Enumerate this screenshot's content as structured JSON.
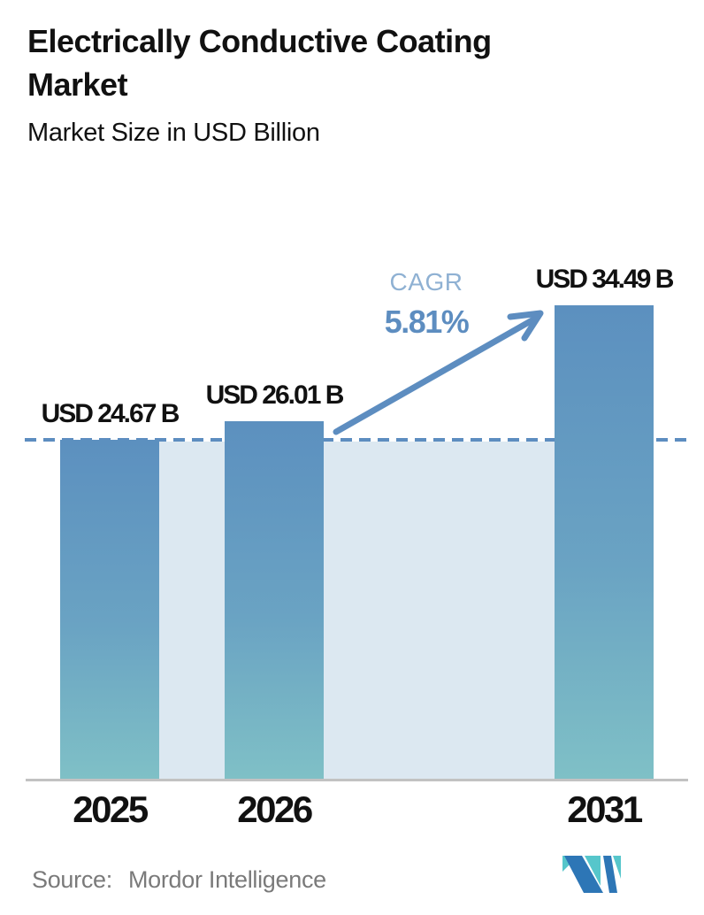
{
  "header": {
    "title_line1": "Electrically Conductive Coating",
    "title_line2": "Market",
    "subtitle": "Market Size in USD Billion"
  },
  "chart_data": {
    "type": "bar",
    "title": "Electrically Conductive Coating Market",
    "subtitle": "Market Size in USD Billion",
    "unit": "USD Billion",
    "categories": [
      "2025",
      "2026",
      "2031"
    ],
    "values": [
      24.67,
      26.01,
      34.49
    ],
    "value_labels": [
      "USD 24.67 B",
      "USD 26.01 B",
      "USD 34.49 B"
    ],
    "ylim": [
      0,
      38
    ],
    "grid": false,
    "legend": false,
    "annotations": {
      "cagr_label": "CAGR",
      "cagr_value": "5.81%",
      "dashed_reference_line_at": 24.67,
      "arrow": "from 2026 bar top to 2031 bar top"
    },
    "colors": {
      "bar_gradient_top": "#5c90bf",
      "bar_gradient_bottom": "#7fc0c6",
      "reference_area": "#dce8f1",
      "accent_blue": "#5d8dc0",
      "cagr_label_blue": "#8fb1d3",
      "axis_line": "#c2c2c2",
      "text": "#111111",
      "source_text": "#7a7a7a"
    }
  },
  "footer": {
    "source_label": "Source:",
    "source_value": "Mordor Intelligence",
    "logo": "mordor-intelligence-logo",
    "logo_colors": {
      "teal": "#56c6cb",
      "blue": "#2d76b6"
    }
  }
}
